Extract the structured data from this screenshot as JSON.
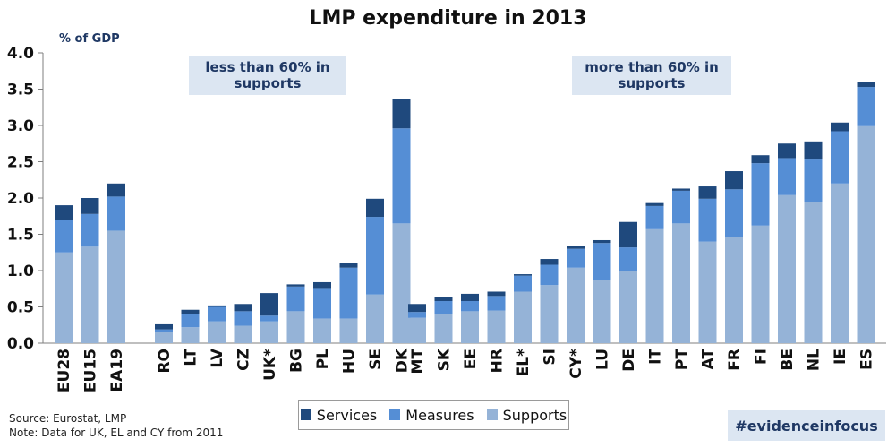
{
  "chart_data": {
    "type": "bar",
    "title": "LMP expenditure in 2013",
    "ylabel": "% of GDP",
    "ylim": [
      0,
      4.0
    ],
    "yticks": [
      "0.0",
      "0.5",
      "1.0",
      "1.5",
      "2.0",
      "2.5",
      "3.0",
      "3.5",
      "4.0"
    ],
    "categories": [
      "EU28",
      "EU15",
      "EA19",
      "RO",
      "LT",
      "LV",
      "CZ",
      "UK*",
      "BG",
      "PL",
      "HU",
      "SE",
      "DK",
      "MT",
      "SK",
      "EE",
      "HR",
      "EL*",
      "SI",
      "CY*",
      "LU",
      "DE",
      "IT",
      "PT",
      "AT",
      "FR",
      "FI",
      "BE",
      "NL",
      "IE",
      "ES"
    ],
    "stacked": true,
    "series": [
      {
        "name": "Supports",
        "color": "#95b3d7",
        "values": [
          1.25,
          1.33,
          1.55,
          0.15,
          0.22,
          0.3,
          0.24,
          0.3,
          0.44,
          0.34,
          0.34,
          0.67,
          1.65,
          0.35,
          0.4,
          0.44,
          0.45,
          0.71,
          0.8,
          1.04,
          0.87,
          1.0,
          1.57,
          1.65,
          1.4,
          1.46,
          1.62,
          2.04,
          1.94,
          2.2,
          2.99
        ]
      },
      {
        "name": "Measures",
        "color": "#558ed5",
        "values": [
          0.45,
          0.45,
          0.47,
          0.04,
          0.18,
          0.2,
          0.2,
          0.08,
          0.34,
          0.42,
          0.7,
          1.07,
          1.31,
          0.08,
          0.18,
          0.14,
          0.2,
          0.22,
          0.28,
          0.26,
          0.51,
          0.32,
          0.32,
          0.45,
          0.59,
          0.66,
          0.86,
          0.51,
          0.59,
          0.72,
          0.54
        ]
      },
      {
        "name": "Services",
        "color": "#1f497d",
        "values": [
          0.2,
          0.22,
          0.18,
          0.07,
          0.06,
          0.02,
          0.1,
          0.31,
          0.03,
          0.08,
          0.07,
          0.25,
          0.4,
          0.11,
          0.05,
          0.1,
          0.06,
          0.02,
          0.08,
          0.04,
          0.04,
          0.35,
          0.04,
          0.03,
          0.17,
          0.25,
          0.11,
          0.2,
          0.25,
          0.12,
          0.07
        ]
      }
    ],
    "legend_order": [
      "Services",
      "Measures",
      "Supports"
    ],
    "legend_position": "bottom",
    "grid": false,
    "annotations": [
      "less than 60% in supports",
      "more than 60% in supports"
    ]
  },
  "source_line": "Source: Eurostat, LMP",
  "note_line": "Note: Data for UK, EL and CY from 2011",
  "hashtag": "#evidenceinfocus"
}
